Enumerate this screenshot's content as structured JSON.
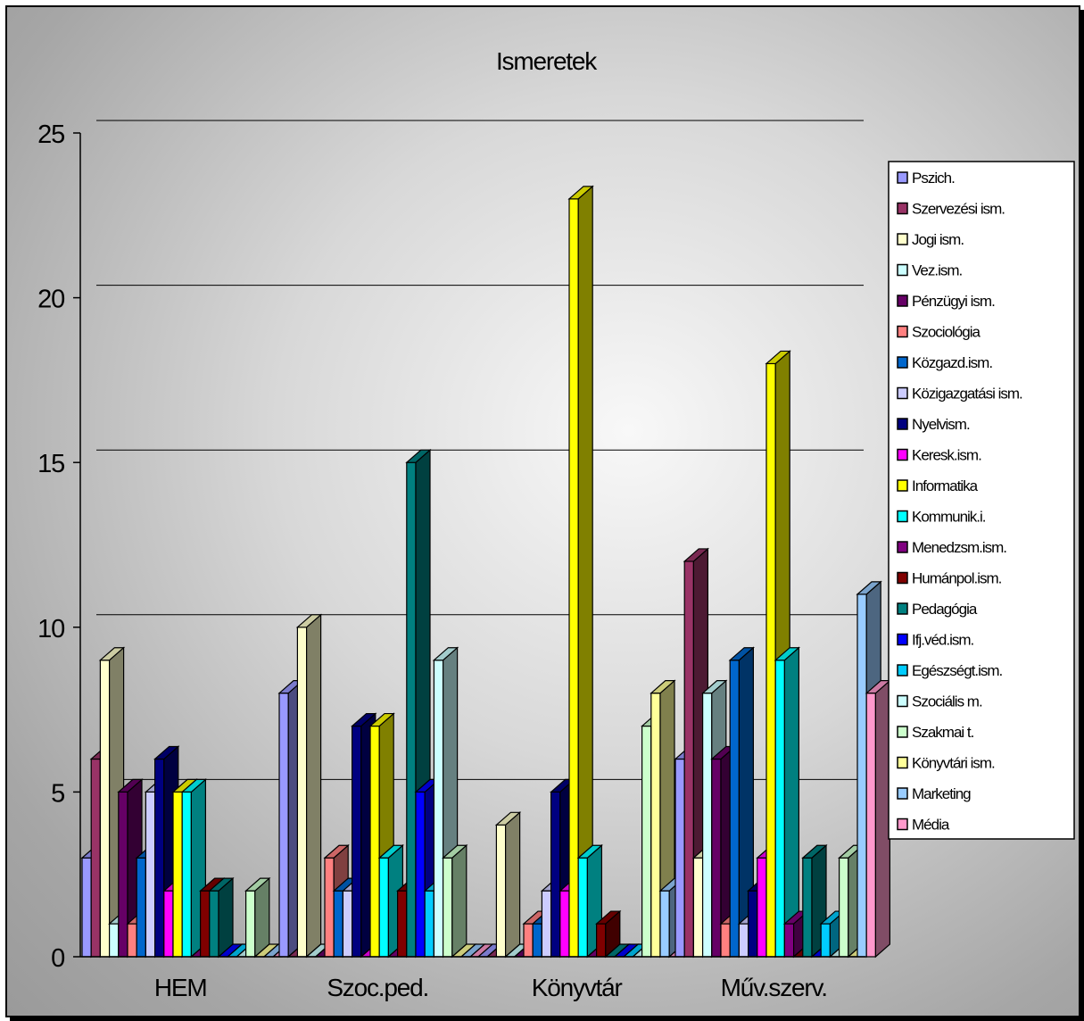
{
  "chart_data": {
    "type": "bar",
    "title": "Ismeretek",
    "categories": [
      "HEM",
      "Szoc.ped.",
      "Könyvtár",
      "Műv.szerv."
    ],
    "ylim": [
      0,
      25
    ],
    "yticks": [
      "0",
      "5",
      "10",
      "15",
      "20",
      "25"
    ],
    "grid": true,
    "legend_position": "right",
    "series": [
      {
        "name": "Pszich.",
        "color": "#9999ff",
        "values": [
          3,
          8,
          0,
          6
        ]
      },
      {
        "name": "Szervezési ism.",
        "color": "#993366",
        "values": [
          6,
          0,
          0,
          12
        ]
      },
      {
        "name": "Jogi ism.",
        "color": "#ffffcc",
        "values": [
          9,
          10,
          4,
          3
        ]
      },
      {
        "name": "Vez.ism.",
        "color": "#ccffff",
        "values": [
          1,
          0,
          0,
          8
        ]
      },
      {
        "name": "Pénzügyi ism.",
        "color": "#660066",
        "values": [
          5,
          0,
          0,
          6
        ]
      },
      {
        "name": "Szociológia",
        "color": "#ff8080",
        "values": [
          1,
          3,
          1,
          1
        ]
      },
      {
        "name": "Közgazd.ism.",
        "color": "#0066cc",
        "values": [
          3,
          2,
          1,
          9
        ]
      },
      {
        "name": "Közigazgatási ism.",
        "color": "#ccccff",
        "values": [
          5,
          2,
          2,
          1
        ]
      },
      {
        "name": "Nyelvism.",
        "color": "#000080",
        "values": [
          6,
          7,
          5,
          2
        ]
      },
      {
        "name": "Keresk.ism.",
        "color": "#ff00ff",
        "values": [
          2,
          0,
          2,
          3
        ]
      },
      {
        "name": "Informatika",
        "color": "#ffff00",
        "values": [
          5,
          7,
          23,
          18
        ]
      },
      {
        "name": "Kommunik.i.",
        "color": "#00ffff",
        "values": [
          5,
          3,
          3,
          9
        ]
      },
      {
        "name": "Menedzsm.ism.",
        "color": "#800080",
        "values": [
          0,
          0,
          0,
          1
        ]
      },
      {
        "name": "Humánpol.ism.",
        "color": "#800000",
        "values": [
          2,
          2,
          1,
          0
        ]
      },
      {
        "name": "Pedagógia",
        "color": "#008080",
        "values": [
          2,
          15,
          0,
          3
        ]
      },
      {
        "name": "Ifj.véd.ism.",
        "color": "#0000ff",
        "values": [
          0,
          5,
          0,
          0
        ]
      },
      {
        "name": "Egészségt.ism.",
        "color": "#00ccff",
        "values": [
          0,
          2,
          0,
          1
        ]
      },
      {
        "name": "Szociális m.",
        "color": "#ccffff",
        "values": [
          0,
          9,
          0,
          0
        ]
      },
      {
        "name": "Szakmai t.",
        "color": "#ccffcc",
        "values": [
          2,
          3,
          7,
          3
        ]
      },
      {
        "name": "Könyvtári ism.",
        "color": "#ffff99",
        "values": [
          0,
          0,
          8,
          0
        ]
      },
      {
        "name": "Marketing",
        "color": "#99ccff",
        "values": [
          0,
          0,
          2,
          11
        ]
      },
      {
        "name": "Média",
        "color": "#ff99cc",
        "values": [
          0,
          0,
          0,
          8
        ]
      }
    ]
  }
}
